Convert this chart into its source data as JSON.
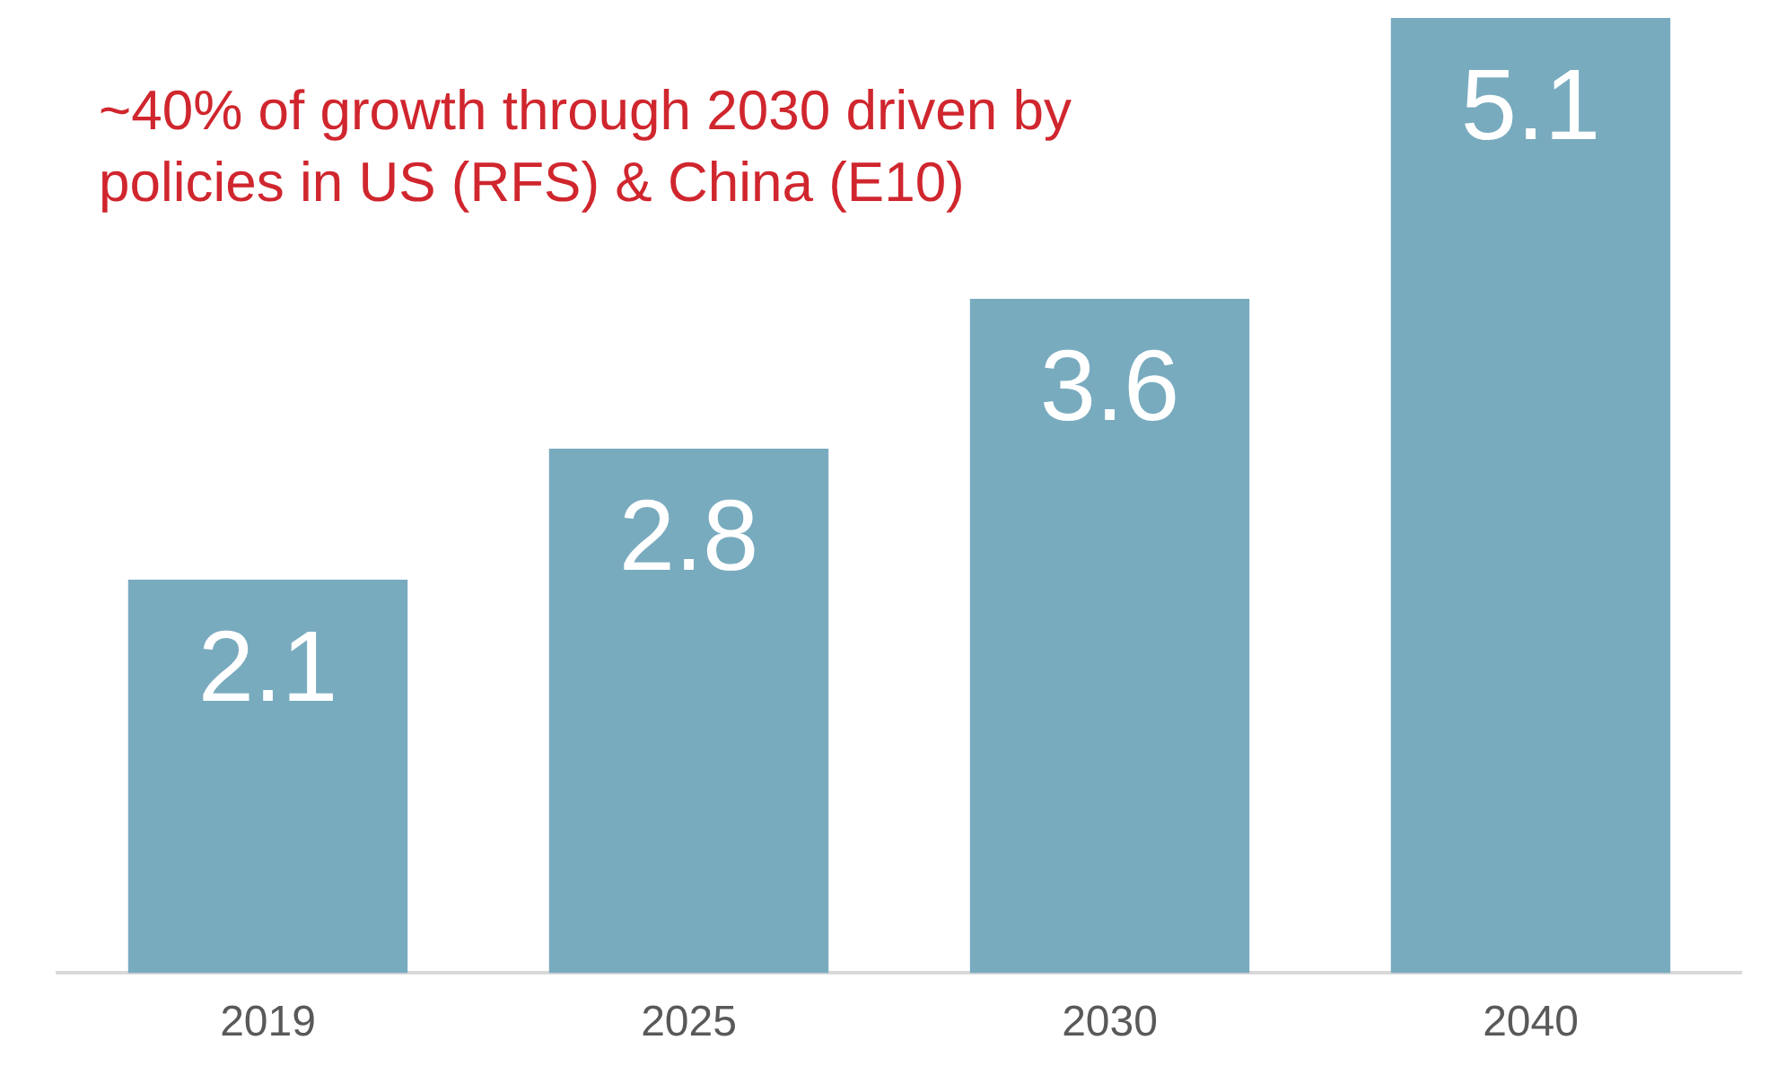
{
  "chart_data": {
    "type": "bar",
    "categories": [
      "2019",
      "2025",
      "2030",
      "2040"
    ],
    "values": [
      2.1,
      2.8,
      3.6,
      5.1
    ],
    "color": "#79abbf",
    "data_labels": true,
    "tick_labels": "x",
    "grid": false,
    "legend": false,
    "annotations": [
      "~40% of growth through 2030 driven by policies in US (RFS) & China (E10)"
    ]
  }
}
